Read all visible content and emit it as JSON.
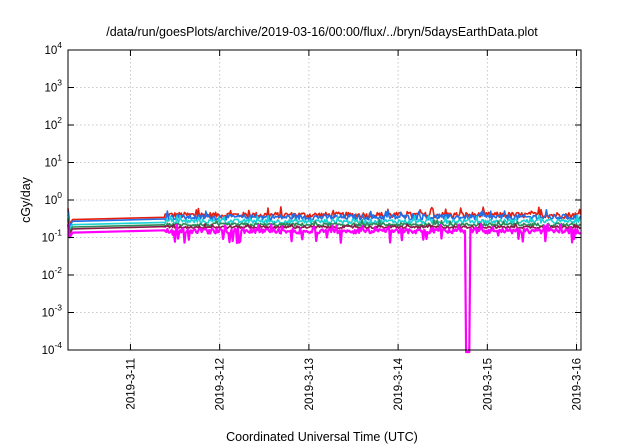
{
  "chart_data": {
    "type": "line",
    "title": "/data/run/goesPlots/archive/2019-03-16/00:00/flux/../bryn/5daysEarthData.plot",
    "xlabel": "Coordinated Universal Time (UTC)",
    "ylabel": "cGy/day",
    "yscale": "log",
    "ylim_exp": [
      -4,
      4
    ],
    "y_tick_labels": [
      {
        "exp": -4,
        "base": "10",
        "sup": "-4"
      },
      {
        "exp": -3,
        "base": "10",
        "sup": "-3"
      },
      {
        "exp": -2,
        "base": "10",
        "sup": "-2"
      },
      {
        "exp": -1,
        "base": "10",
        "sup": "-1"
      },
      {
        "exp": 0,
        "base": "10",
        "sup": "0"
      },
      {
        "exp": 1,
        "base": "10",
        "sup": "1"
      },
      {
        "exp": 2,
        "base": "10",
        "sup": "2"
      },
      {
        "exp": 3,
        "base": "10",
        "sup": "3"
      },
      {
        "exp": 4,
        "base": "10",
        "sup": "4"
      }
    ],
    "x_range_days": [
      10.3,
      16.05
    ],
    "x_ticks": [
      {
        "day": 11,
        "label": "2019-3-11"
      },
      {
        "day": 12,
        "label": "2019-3-12"
      },
      {
        "day": 13,
        "label": "2019-3-13"
      },
      {
        "day": 14,
        "label": "2019-3-14"
      },
      {
        "day": 15,
        "label": "2019-3-15"
      },
      {
        "day": 16,
        "label": "2019-3-16"
      }
    ],
    "grid": true,
    "series": [
      {
        "color": "#e51e10",
        "start": 0.3,
        "level": 0.4,
        "noise": 0.18,
        "dips": false
      },
      {
        "color": "#1e6fe8",
        "start": 0.27,
        "level": 0.35,
        "noise": 0.16,
        "dips": false
      },
      {
        "color": "#19d4d4",
        "start": 0.22,
        "level": 0.27,
        "noise": 0.14,
        "dips": false
      },
      {
        "color": "#2e8b57",
        "start": 0.19,
        "level": 0.22,
        "noise": 0.1,
        "dips": false
      },
      {
        "color": "#8b1a4a",
        "start": 0.17,
        "level": 0.19,
        "noise": 0.08,
        "dips": false
      },
      {
        "color": "#ff00ff",
        "start": 0.135,
        "level": 0.15,
        "noise": 0.15,
        "dips": true,
        "drop_day": 14.78
      }
    ]
  }
}
